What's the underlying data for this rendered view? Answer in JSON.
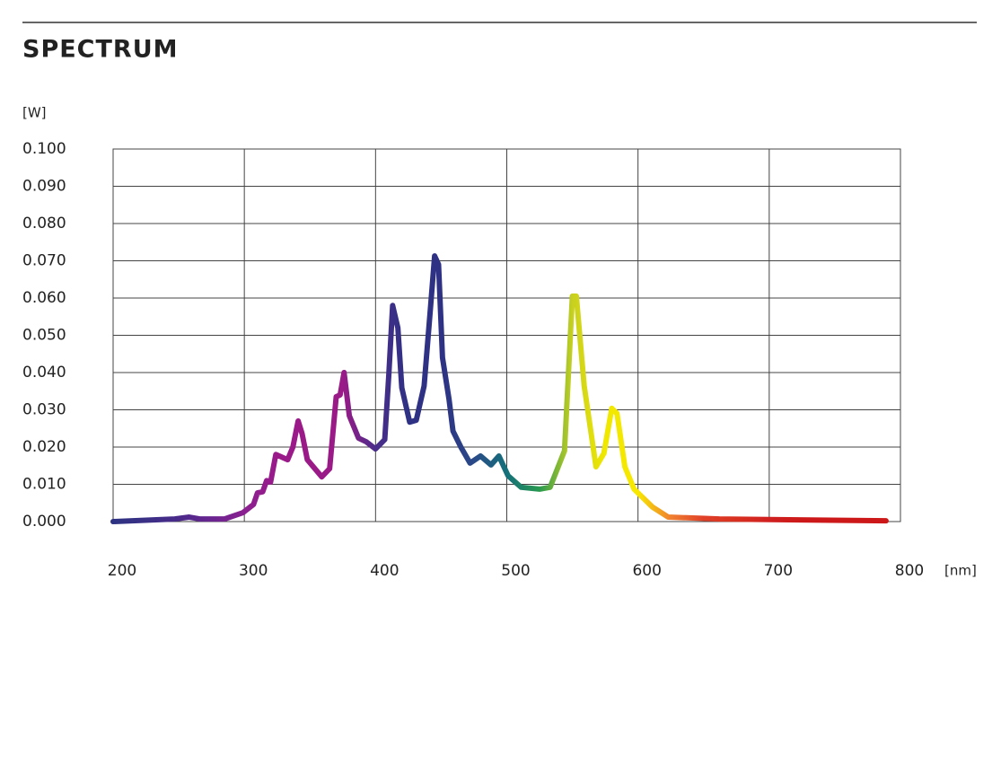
{
  "chart_data": {
    "type": "line",
    "title": "SPECTRUM",
    "y_label": "[W]",
    "x_label": "[nm]",
    "x": [
      200,
      247,
      258,
      266,
      285,
      299,
      307,
      310,
      314,
      317,
      320,
      324,
      333,
      337,
      341,
      344,
      348,
      359,
      365,
      370,
      373,
      376,
      380,
      387,
      393,
      400,
      407,
      410,
      413,
      417,
      420,
      426,
      431,
      437,
      442,
      445,
      448,
      451,
      456,
      459,
      465,
      472,
      480,
      488,
      494,
      501,
      511,
      525,
      533,
      544,
      550,
      553,
      559,
      568,
      574,
      580,
      584,
      590,
      597,
      611,
      623,
      662,
      789
    ],
    "values": [
      0,
      0.0007,
      0.0012,
      0.0007,
      0.0007,
      0.0024,
      0.0046,
      0.0077,
      0.008,
      0.011,
      0.0106,
      0.018,
      0.0166,
      0.02,
      0.027,
      0.0236,
      0.0166,
      0.012,
      0.0142,
      0.0335,
      0.034,
      0.04,
      0.0284,
      0.0224,
      0.0214,
      0.0195,
      0.022,
      0.0388,
      0.058,
      0.052,
      0.0359,
      0.0267,
      0.0272,
      0.0364,
      0.058,
      0.0713,
      0.069,
      0.044,
      0.0328,
      0.0243,
      0.02,
      0.0157,
      0.0176,
      0.0152,
      0.0176,
      0.0123,
      0.0092,
      0.0087,
      0.0092,
      0.019,
      0.0605,
      0.0605,
      0.0364,
      0.0147,
      0.0183,
      0.0304,
      0.029,
      0.0147,
      0.0087,
      0.0039,
      0.0012,
      0.0007,
      0.0002
    ],
    "color_stops": [
      "#2e3282",
      "#3a3086",
      "#4a2a8a",
      "#6a2590",
      "#8a2090",
      "#9a1a8a",
      "#9a1a88",
      "#9a1a88",
      "#4a2d8a",
      "#2e3184",
      "#2e3184",
      "#2a4a88",
      "#14707a",
      "#2a9a50",
      "#c8d020",
      "#f0e800",
      "#f8e800",
      "#f08030",
      "#e04028",
      "#d83020",
      "#d02020",
      "#cc1818",
      "#cc1818",
      "#cc1818",
      "#cc1818"
    ],
    "xlim": [
      200,
      800
    ],
    "xticks": [
      200,
      300,
      400,
      500,
      600,
      700,
      800
    ],
    "ylim": [
      0,
      0.1
    ],
    "yticks": [
      {
        "value": 0,
        "label": "0.000"
      },
      {
        "value": 0.01,
        "label": "0.010"
      },
      {
        "value": 0.02,
        "label": "0.020"
      },
      {
        "value": 0.03,
        "label": "0.030"
      },
      {
        "value": 0.04,
        "label": "0.040"
      },
      {
        "value": 0.05,
        "label": "0.050"
      },
      {
        "value": 0.06,
        "label": "0.060"
      },
      {
        "value": 0.07,
        "label": "0.070"
      },
      {
        "value": 0.08,
        "label": "0.080"
      },
      {
        "value": 0.09,
        "label": "0.090"
      },
      {
        "value": 0.1,
        "label": "0.100"
      }
    ],
    "grid": true
  }
}
